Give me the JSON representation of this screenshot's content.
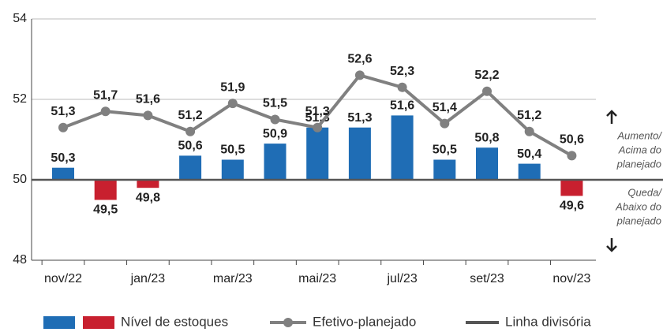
{
  "chart_data": {
    "type": "bar-line",
    "categories": [
      "nov/22",
      null,
      "jan/23",
      null,
      "mar/23",
      null,
      "mai/23",
      null,
      "jul/23",
      null,
      "set/23",
      null,
      "nov/23"
    ],
    "series": [
      {
        "name": "Nível de estoques",
        "type": "bar",
        "color": "#1f6db5",
        "negative_color": "#c8202f",
        "values": [
          50.3,
          49.5,
          49.8,
          50.6,
          50.5,
          50.9,
          51.3,
          51.3,
          51.6,
          50.5,
          50.8,
          50.4,
          49.6
        ],
        "value_labels": [
          "50,3",
          "49,5",
          "49,8",
          "50,6",
          "50,5",
          "50,9",
          "51,3",
          "51,3",
          "51,6",
          "50,5",
          "50,8",
          "50,4",
          "49,6"
        ]
      },
      {
        "name": "Efetivo-planejado",
        "type": "line",
        "color": "#808080",
        "values": [
          51.3,
          51.7,
          51.6,
          51.2,
          51.9,
          51.5,
          51.3,
          52.6,
          52.3,
          51.4,
          52.2,
          51.2,
          50.6
        ],
        "value_labels": [
          "51,3",
          "51,7",
          "51,6",
          "51,2",
          "51,9",
          "51,5",
          "51,3",
          "52,6",
          "52,3",
          "51,4",
          "52,2",
          "51,2",
          "50,6"
        ]
      }
    ],
    "divider": {
      "name": "Linha divisória",
      "value": 50,
      "color": "#555555"
    },
    "ylim": [
      48,
      54
    ],
    "yticks": [
      48,
      50,
      52,
      54
    ],
    "grid": true,
    "annotations": [
      [
        "Aumento/",
        "Acima do",
        "planejado"
      ],
      [
        "Queda/",
        "Abaixo do",
        "planejado"
      ]
    ]
  }
}
